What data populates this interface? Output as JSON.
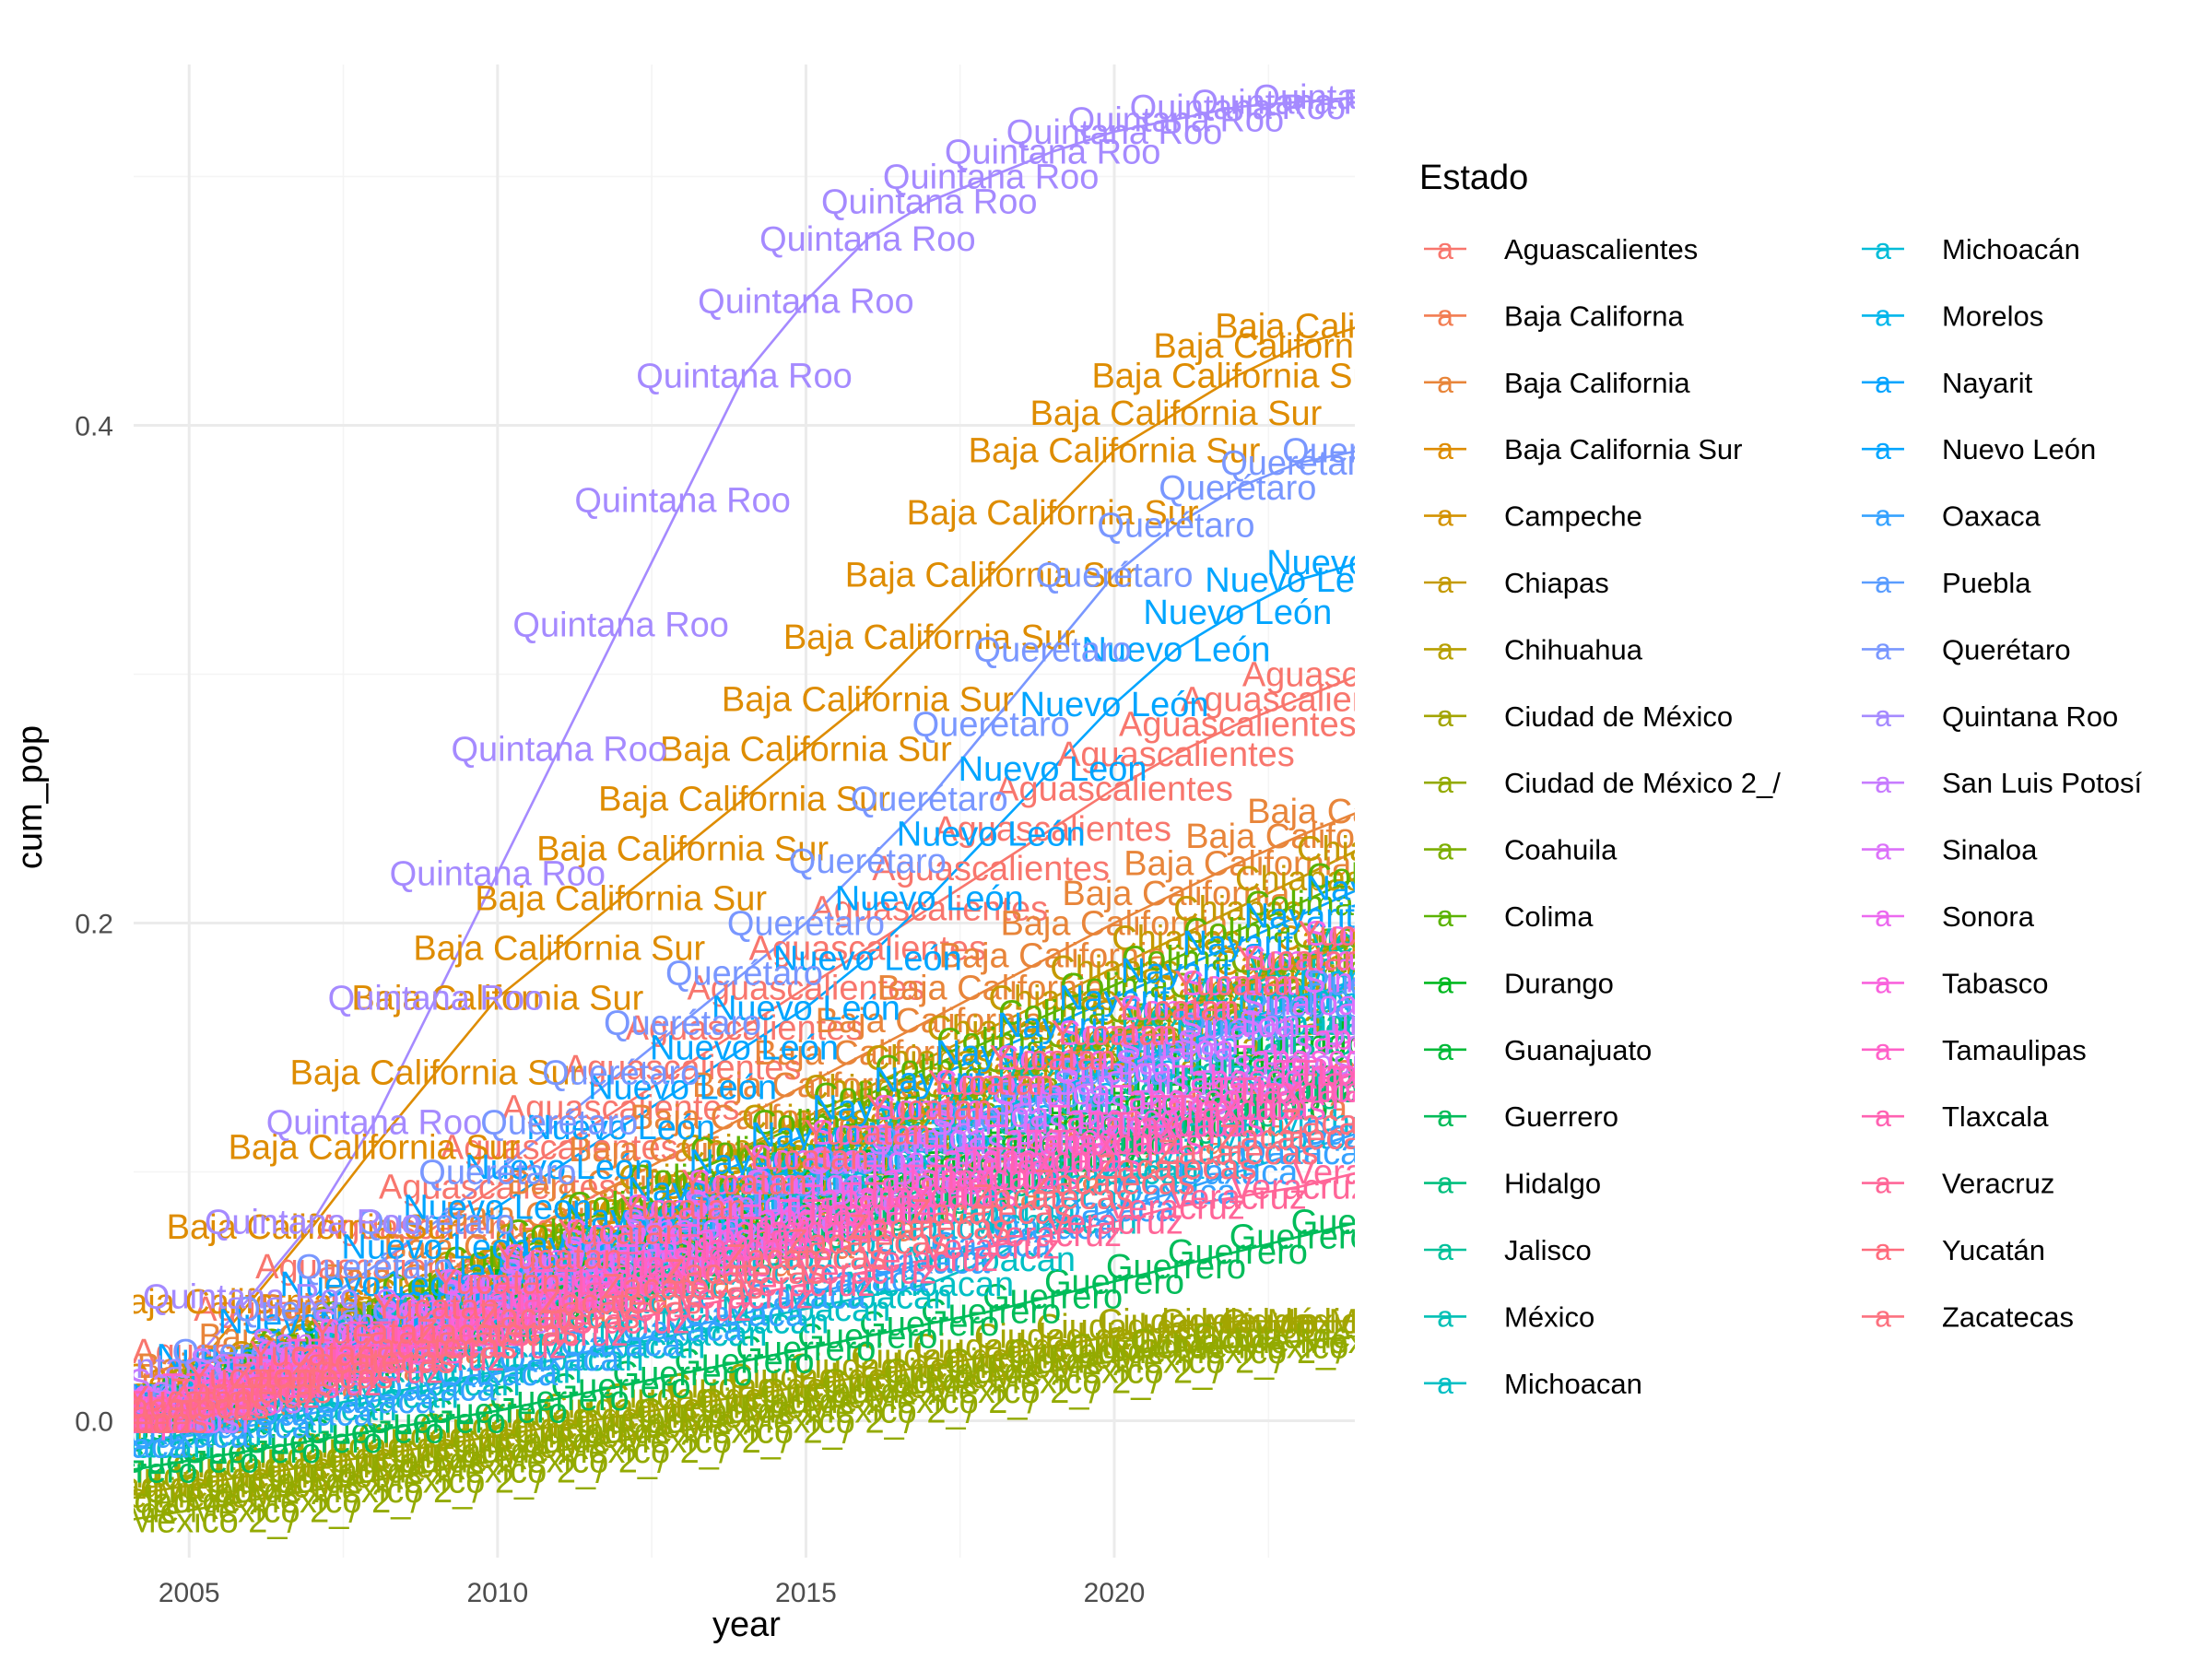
{
  "chart_data": {
    "type": "line",
    "xlabel": "year",
    "ylabel": "cum_pop",
    "xlim": [
      2004.1,
      2023.9
    ],
    "ylim": [
      -0.055,
      0.545
    ],
    "x_ticks": [
      2005,
      2010,
      2015,
      2020
    ],
    "x_tick_labels": [
      "2005",
      "2010",
      "2015",
      "2020"
    ],
    "y_ticks": [
      0.0,
      0.2,
      0.4
    ],
    "y_tick_labels": [
      "0.0",
      "0.2",
      "0.4"
    ],
    "grid": true,
    "legend": {
      "title": "Estado",
      "placement": "right",
      "columns": 2
    },
    "years": [
      2004,
      2005,
      2006,
      2007,
      2008,
      2009,
      2010,
      2011,
      2012,
      2013,
      2014,
      2015,
      2016,
      2017,
      2018,
      2019,
      2020,
      2021,
      2022,
      2023,
      2024
    ],
    "series": [
      {
        "name": "Aguascalientes",
        "color": "#F8766D",
        "values": [
          0.0,
          0.012,
          0.028,
          0.045,
          0.062,
          0.078,
          0.094,
          0.11,
          0.126,
          0.142,
          0.158,
          0.174,
          0.19,
          0.206,
          0.222,
          0.238,
          0.254,
          0.268,
          0.28,
          0.29,
          0.3
        ]
      },
      {
        "name": "Baja Californa",
        "color": "#F27D52",
        "values": [
          0.0,
          0.007,
          0.014,
          0.021,
          0.028,
          0.035,
          0.042,
          0.049,
          0.056,
          0.063,
          0.07,
          0.077,
          0.084,
          0.091,
          0.098,
          0.105,
          0.112,
          0.119,
          0.126,
          0.133,
          0.14
        ]
      },
      {
        "name": "Baja California",
        "color": "#E8853A",
        "values": [
          0.0,
          0.011,
          0.022,
          0.034,
          0.046,
          0.058,
          0.07,
          0.083,
          0.096,
          0.109,
          0.122,
          0.135,
          0.148,
          0.161,
          0.174,
          0.187,
          0.2,
          0.212,
          0.224,
          0.235,
          0.245
        ]
      },
      {
        "name": "Baja California Sur",
        "color": "#DE8C00",
        "values": [
          0.0,
          0.018,
          0.048,
          0.078,
          0.11,
          0.14,
          0.17,
          0.19,
          0.21,
          0.23,
          0.25,
          0.27,
          0.29,
          0.315,
          0.34,
          0.365,
          0.39,
          0.405,
          0.42,
          0.432,
          0.44
        ]
      },
      {
        "name": "Campeche",
        "color": "#D39200",
        "values": [
          0.0,
          0.009,
          0.018,
          0.027,
          0.036,
          0.045,
          0.054,
          0.064,
          0.074,
          0.084,
          0.094,
          0.104,
          0.114,
          0.124,
          0.134,
          0.144,
          0.154,
          0.164,
          0.174,
          0.184,
          0.194
        ]
      },
      {
        "name": "Chiapas",
        "color": "#C49A00",
        "values": [
          0.0,
          0.01,
          0.02,
          0.03,
          0.041,
          0.052,
          0.063,
          0.074,
          0.086,
          0.098,
          0.11,
          0.122,
          0.134,
          0.146,
          0.158,
          0.17,
          0.182,
          0.194,
          0.206,
          0.218,
          0.23
        ]
      },
      {
        "name": "Chihuahua",
        "color": "#B79F00",
        "values": [
          0.0,
          0.008,
          0.016,
          0.025,
          0.034,
          0.043,
          0.052,
          0.061,
          0.07,
          0.079,
          0.088,
          0.097,
          0.106,
          0.115,
          0.124,
          0.133,
          0.142,
          0.151,
          0.16,
          0.169,
          0.178
        ]
      },
      {
        "name": "Ciudad de México",
        "color": "#A3A500",
        "values": [
          -0.03,
          -0.026,
          -0.022,
          -0.018,
          -0.014,
          -0.01,
          -0.006,
          -0.002,
          0.002,
          0.006,
          0.01,
          0.014,
          0.018,
          0.022,
          0.026,
          0.03,
          0.034,
          0.038,
          0.04,
          0.04,
          0.04
        ]
      },
      {
        "name": "Ciudad de México 2_/",
        "color": "#93AA00",
        "values": [
          -0.04,
          -0.036,
          -0.032,
          -0.028,
          -0.024,
          -0.02,
          -0.016,
          -0.012,
          -0.008,
          -0.004,
          0.0,
          0.004,
          0.008,
          0.012,
          0.016,
          0.02,
          0.024,
          0.028,
          0.03,
          0.032,
          0.034
        ]
      },
      {
        "name": "Coahuila",
        "color": "#7CAE00",
        "values": [
          0.0,
          0.009,
          0.018,
          0.027,
          0.036,
          0.045,
          0.055,
          0.065,
          0.075,
          0.085,
          0.095,
          0.105,
          0.115,
          0.125,
          0.135,
          0.145,
          0.155,
          0.165,
          0.175,
          0.185,
          0.195
        ]
      },
      {
        "name": "Colima",
        "color": "#5BB300",
        "values": [
          0.0,
          0.01,
          0.021,
          0.032,
          0.043,
          0.054,
          0.065,
          0.076,
          0.087,
          0.098,
          0.109,
          0.12,
          0.131,
          0.142,
          0.153,
          0.164,
          0.175,
          0.186,
          0.197,
          0.208,
          0.219
        ]
      },
      {
        "name": "Durango",
        "color": "#00B81F",
        "values": [
          0.0,
          0.008,
          0.016,
          0.024,
          0.032,
          0.04,
          0.048,
          0.056,
          0.064,
          0.072,
          0.08,
          0.088,
          0.096,
          0.104,
          0.112,
          0.12,
          0.128,
          0.136,
          0.144,
          0.152,
          0.16
        ]
      },
      {
        "name": "Guanajuato",
        "color": "#00BA38",
        "values": [
          0.0,
          0.007,
          0.014,
          0.021,
          0.028,
          0.035,
          0.042,
          0.049,
          0.056,
          0.063,
          0.07,
          0.077,
          0.084,
          0.091,
          0.098,
          0.105,
          0.112,
          0.119,
          0.126,
          0.133,
          0.14
        ]
      },
      {
        "name": "Guerrero",
        "color": "#00BC59",
        "values": [
          -0.02,
          -0.016,
          -0.012,
          -0.008,
          -0.004,
          0.0,
          0.004,
          0.009,
          0.014,
          0.019,
          0.024,
          0.029,
          0.034,
          0.039,
          0.044,
          0.05,
          0.056,
          0.062,
          0.068,
          0.074,
          0.08
        ]
      },
      {
        "name": "Hidalgo",
        "color": "#00BF7D",
        "values": [
          0.0,
          0.007,
          0.014,
          0.021,
          0.028,
          0.035,
          0.042,
          0.049,
          0.056,
          0.063,
          0.07,
          0.077,
          0.084,
          0.091,
          0.098,
          0.105,
          0.112,
          0.119,
          0.126,
          0.133,
          0.14
        ]
      },
      {
        "name": "Jalisco",
        "color": "#00C19A",
        "values": [
          0.0,
          0.008,
          0.016,
          0.024,
          0.032,
          0.04,
          0.048,
          0.056,
          0.064,
          0.072,
          0.08,
          0.088,
          0.096,
          0.104,
          0.112,
          0.12,
          0.128,
          0.136,
          0.144,
          0.152,
          0.16
        ]
      },
      {
        "name": "México",
        "color": "#00C0B5",
        "values": [
          0.0,
          0.009,
          0.018,
          0.027,
          0.036,
          0.045,
          0.054,
          0.063,
          0.073,
          0.083,
          0.093,
          0.103,
          0.113,
          0.123,
          0.133,
          0.143,
          0.153,
          0.163,
          0.173,
          0.183,
          0.193
        ]
      },
      {
        "name": "Michoacan",
        "color": "#00BFC4",
        "values": [
          -0.01,
          -0.005,
          0.0,
          0.005,
          0.01,
          0.015,
          0.02,
          0.025,
          0.03,
          0.035,
          0.04,
          0.045,
          0.05,
          0.055,
          0.065,
          0.08,
          0.1,
          0.12,
          0.14,
          0.16,
          0.17
        ]
      },
      {
        "name": "Michoacán",
        "color": "#00BCD8",
        "values": [
          0.0,
          0.006,
          0.012,
          0.018,
          0.024,
          0.03,
          0.036,
          0.042,
          0.048,
          0.054,
          0.06,
          0.066,
          0.072,
          0.078,
          0.084,
          0.09,
          0.096,
          0.102,
          0.108,
          0.114,
          0.12
        ]
      },
      {
        "name": "Morelos",
        "color": "#00B6EB",
        "values": [
          0.0,
          0.008,
          0.016,
          0.025,
          0.034,
          0.043,
          0.052,
          0.061,
          0.07,
          0.079,
          0.088,
          0.097,
          0.106,
          0.115,
          0.124,
          0.133,
          0.142,
          0.151,
          0.16,
          0.169,
          0.178
        ]
      },
      {
        "name": "Nayarit",
        "color": "#06A4FF",
        "values": [
          0.0,
          0.009,
          0.019,
          0.029,
          0.039,
          0.049,
          0.06,
          0.071,
          0.082,
          0.093,
          0.104,
          0.115,
          0.126,
          0.137,
          0.148,
          0.159,
          0.17,
          0.181,
          0.192,
          0.203,
          0.214
        ]
      },
      {
        "name": "Nuevo León",
        "color": "#00A5FF",
        "values": [
          0.0,
          0.012,
          0.026,
          0.04,
          0.055,
          0.07,
          0.086,
          0.102,
          0.118,
          0.134,
          0.15,
          0.166,
          0.186,
          0.21,
          0.236,
          0.262,
          0.288,
          0.31,
          0.325,
          0.338,
          0.345
        ]
      },
      {
        "name": "Oaxaca",
        "color": "#35A2FF",
        "values": [
          -0.01,
          -0.006,
          -0.002,
          0.003,
          0.008,
          0.013,
          0.019,
          0.025,
          0.031,
          0.037,
          0.043,
          0.05,
          0.057,
          0.064,
          0.071,
          0.078,
          0.085,
          0.092,
          0.1,
          0.108,
          0.116
        ]
      },
      {
        "name": "Puebla",
        "color": "#5A9DFF",
        "values": [
          0.0,
          0.008,
          0.016,
          0.024,
          0.032,
          0.041,
          0.05,
          0.059,
          0.068,
          0.077,
          0.086,
          0.095,
          0.104,
          0.113,
          0.122,
          0.131,
          0.14,
          0.149,
          0.158,
          0.167,
          0.176
        ]
      },
      {
        "name": "Querétaro",
        "color": "#7997FF",
        "values": [
          0.0,
          0.012,
          0.028,
          0.045,
          0.062,
          0.08,
          0.1,
          0.12,
          0.14,
          0.16,
          0.18,
          0.2,
          0.225,
          0.25,
          0.28,
          0.31,
          0.34,
          0.36,
          0.375,
          0.385,
          0.39
        ]
      },
      {
        "name": "Quintana Roo",
        "color": "#A58AFF",
        "values": [
          0.0,
          0.022,
          0.05,
          0.08,
          0.12,
          0.17,
          0.22,
          0.27,
          0.32,
          0.37,
          0.42,
          0.45,
          0.475,
          0.49,
          0.5,
          0.51,
          0.518,
          0.523,
          0.528,
          0.53,
          0.532
        ]
      },
      {
        "name": "San Luis Potosí",
        "color": "#C77CFF",
        "values": [
          0.0,
          0.008,
          0.016,
          0.024,
          0.032,
          0.04,
          0.048,
          0.056,
          0.064,
          0.072,
          0.08,
          0.088,
          0.096,
          0.104,
          0.112,
          0.12,
          0.128,
          0.136,
          0.144,
          0.152,
          0.16
        ]
      },
      {
        "name": "Sinaloa",
        "color": "#DC71FA",
        "values": [
          0.0,
          0.008,
          0.016,
          0.024,
          0.033,
          0.042,
          0.051,
          0.06,
          0.069,
          0.078,
          0.087,
          0.096,
          0.105,
          0.114,
          0.123,
          0.132,
          0.141,
          0.15,
          0.159,
          0.168,
          0.177
        ]
      },
      {
        "name": "Sonora",
        "color": "#EC69EF",
        "values": [
          0.0,
          0.009,
          0.018,
          0.027,
          0.036,
          0.046,
          0.056,
          0.066,
          0.076,
          0.086,
          0.096,
          0.106,
          0.116,
          0.126,
          0.136,
          0.146,
          0.156,
          0.166,
          0.176,
          0.186,
          0.196
        ]
      },
      {
        "name": "Tabasco",
        "color": "#F962DD",
        "values": [
          0.0,
          0.007,
          0.014,
          0.021,
          0.028,
          0.035,
          0.042,
          0.05,
          0.058,
          0.066,
          0.074,
          0.082,
          0.09,
          0.098,
          0.106,
          0.114,
          0.122,
          0.13,
          0.138,
          0.146,
          0.154
        ]
      },
      {
        "name": "Tamaulipas",
        "color": "#FF61C9",
        "values": [
          0.0,
          0.007,
          0.014,
          0.021,
          0.028,
          0.035,
          0.042,
          0.049,
          0.056,
          0.063,
          0.07,
          0.077,
          0.084,
          0.091,
          0.098,
          0.105,
          0.112,
          0.119,
          0.126,
          0.133,
          0.14
        ]
      },
      {
        "name": "Tlaxcala",
        "color": "#FF62B2",
        "values": [
          0.0,
          0.007,
          0.014,
          0.021,
          0.028,
          0.035,
          0.042,
          0.049,
          0.056,
          0.063,
          0.07,
          0.077,
          0.084,
          0.091,
          0.098,
          0.105,
          0.112,
          0.119,
          0.126,
          0.133,
          0.14
        ]
      },
      {
        "name": "Veracruz",
        "color": "#FF6698",
        "values": [
          0.0,
          0.005,
          0.01,
          0.015,
          0.02,
          0.025,
          0.03,
          0.035,
          0.04,
          0.045,
          0.05,
          0.055,
          0.06,
          0.065,
          0.07,
          0.075,
          0.08,
          0.086,
          0.09,
          0.094,
          0.1
        ]
      },
      {
        "name": "Yucatán",
        "color": "#FF6C7D",
        "values": [
          0.0,
          0.009,
          0.018,
          0.027,
          0.036,
          0.046,
          0.056,
          0.066,
          0.076,
          0.086,
          0.096,
          0.106,
          0.116,
          0.126,
          0.136,
          0.146,
          0.156,
          0.166,
          0.176,
          0.186,
          0.196
        ]
      },
      {
        "name": "Zacatecas",
        "color": "#FC717F",
        "values": [
          0.0,
          0.006,
          0.012,
          0.018,
          0.024,
          0.03,
          0.036,
          0.042,
          0.048,
          0.054,
          0.06,
          0.066,
          0.072,
          0.078,
          0.084,
          0.09,
          0.096,
          0.102,
          0.108,
          0.114,
          0.12
        ]
      }
    ]
  },
  "legend_display": {
    "key_glyph": "a"
  }
}
